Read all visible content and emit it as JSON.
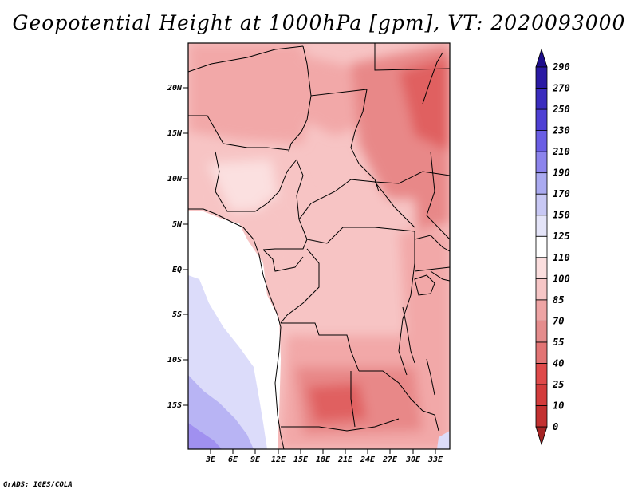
{
  "title": "Geopotential Height at 1000hPa [gpm], VT: 2020093000",
  "credit": "GrADS: IGES/COLA",
  "map": {
    "lat_labels": [
      "20N",
      "15N",
      "10N",
      "5N",
      "EQ",
      "5S",
      "10S",
      "15S"
    ],
    "lon_labels": [
      "3E",
      "6E",
      "9E",
      "12E",
      "15E",
      "18E",
      "21E",
      "24E",
      "27E",
      "30E",
      "33E"
    ]
  },
  "colorbar": {
    "labels": [
      "0",
      "10",
      "25",
      "40",
      "55",
      "70",
      "85",
      "100",
      "110",
      "125",
      "150",
      "170",
      "190",
      "210",
      "230",
      "250",
      "270",
      "290"
    ],
    "colors": [
      "#a52424",
      "#c33131",
      "#d33c3c",
      "#df4a4a",
      "#e27474",
      "#e48c8c",
      "#eea4a4",
      "#f6c6c6",
      "#fbdede",
      "#ffffff",
      "#e4e4f8",
      "#c8c8f4",
      "#aaaaf0",
      "#8c84ec",
      "#6a5ee4",
      "#4e40d4",
      "#3a2cbe",
      "#2a1aa4",
      "#1e0e8c"
    ]
  },
  "colors": {
    "ocean_near": "#ffffff",
    "ocean_mid": "#dcdcfa",
    "ocean_far": "#b8b4f4",
    "ocean_deep": "#a090f0",
    "land_base": "#f7c4c4",
    "land_mid": "#f2a8a8",
    "land_dark": "#e88888",
    "land_hot": "#e06060"
  }
}
